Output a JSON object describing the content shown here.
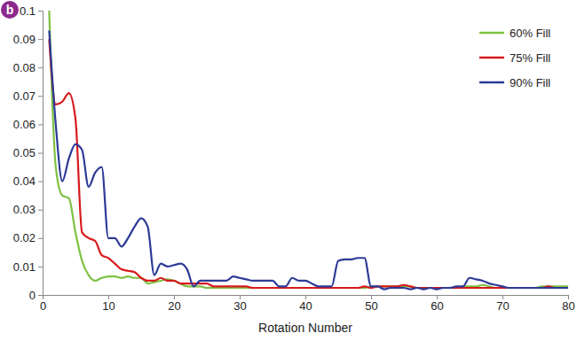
{
  "chart_data": {
    "type": "line",
    "title": "b",
    "xlabel": "Rotation Number",
    "x": [
      1,
      2,
      3,
      4,
      5,
      6,
      7,
      8,
      9,
      10,
      11,
      12,
      13,
      14,
      15,
      16,
      17,
      18,
      19,
      20,
      21,
      22,
      23,
      24,
      25,
      26,
      27,
      28,
      29,
      30,
      31,
      32,
      33,
      34,
      35,
      36,
      37,
      38,
      39,
      40,
      41,
      42,
      43,
      44,
      45,
      46,
      47,
      48,
      49,
      50,
      51,
      52,
      53,
      54,
      55,
      56,
      57,
      58,
      59,
      60,
      61,
      62,
      63,
      64,
      65,
      66,
      67,
      68,
      69,
      70,
      71,
      72,
      73,
      74,
      75,
      76,
      77,
      78,
      79,
      80
    ],
    "series": [
      {
        "name": "60% Fill",
        "color": "#7dc142",
        "values": [
          0.1,
          0.045,
          0.035,
          0.034,
          0.022,
          0.012,
          0.007,
          0.005,
          0.006,
          0.0065,
          0.0065,
          0.006,
          0.0065,
          0.006,
          0.006,
          0.004,
          0.0045,
          0.005,
          0.0055,
          0.005,
          0.004,
          0.003,
          0.003,
          0.003,
          0.0025,
          0.0025,
          0.0025,
          0.0025,
          0.0025,
          0.0025,
          0.0025,
          0.0025,
          0.0025,
          0.0025,
          0.0025,
          0.0025,
          0.0025,
          0.0025,
          0.0025,
          0.0025,
          0.0025,
          0.0025,
          0.0025,
          0.0025,
          0.0025,
          0.0025,
          0.0025,
          0.0025,
          0.0025,
          0.003,
          0.003,
          0.003,
          0.003,
          0.003,
          0.003,
          0.003,
          0.0025,
          0.0025,
          0.0025,
          0.0025,
          0.0025,
          0.0025,
          0.0025,
          0.003,
          0.003,
          0.003,
          0.0035,
          0.003,
          0.0025,
          0.0025,
          0.0025,
          0.0025,
          0.0025,
          0.0025,
          0.0025,
          0.003,
          0.003,
          0.003,
          0.003,
          0.003
        ]
      },
      {
        "name": "75% Fill",
        "color": "#d7191c",
        "values": [
          0.09,
          0.067,
          0.068,
          0.071,
          0.062,
          0.022,
          0.02,
          0.019,
          0.014,
          0.013,
          0.011,
          0.009,
          0.0085,
          0.008,
          0.006,
          0.005,
          0.005,
          0.006,
          0.005,
          0.005,
          0.004,
          0.004,
          0.004,
          0.004,
          0.004,
          0.003,
          0.003,
          0.003,
          0.003,
          0.003,
          0.003,
          0.0025,
          0.0025,
          0.0025,
          0.0025,
          0.0025,
          0.0025,
          0.0025,
          0.0025,
          0.0025,
          0.0025,
          0.0025,
          0.0025,
          0.0025,
          0.0025,
          0.0025,
          0.0025,
          0.0025,
          0.003,
          0.0025,
          0.003,
          0.003,
          0.003,
          0.003,
          0.0035,
          0.003,
          0.0025,
          0.0025,
          0.0025,
          0.0025,
          0.0025,
          0.0025,
          0.0025,
          0.0025,
          0.0025,
          0.0025,
          0.0025,
          0.0025,
          0.0025,
          0.0025,
          0.0025,
          0.0025,
          0.0025,
          0.0025,
          0.0025,
          0.0025,
          0.003,
          0.0025,
          0.0025,
          0.0025
        ]
      },
      {
        "name": "90% Fill",
        "color": "#2c3a97",
        "values": [
          0.093,
          0.06,
          0.04,
          0.048,
          0.053,
          0.051,
          0.038,
          0.043,
          0.045,
          0.02,
          0.02,
          0.017,
          0.02,
          0.024,
          0.027,
          0.024,
          0.007,
          0.011,
          0.01,
          0.0105,
          0.011,
          0.009,
          0.003,
          0.005,
          0.005,
          0.005,
          0.005,
          0.005,
          0.0065,
          0.006,
          0.0055,
          0.005,
          0.005,
          0.005,
          0.005,
          0.003,
          0.003,
          0.006,
          0.005,
          0.005,
          0.004,
          0.003,
          0.003,
          0.003,
          0.012,
          0.0125,
          0.0125,
          0.013,
          0.013,
          0.003,
          0.003,
          0.002,
          0.0025,
          0.0025,
          0.0025,
          0.002,
          0.0025,
          0.002,
          0.0025,
          0.002,
          0.0025,
          0.0025,
          0.003,
          0.003,
          0.006,
          0.0055,
          0.005,
          0.004,
          0.0035,
          0.003,
          0.0025,
          0.0025,
          0.0025,
          0.0025,
          0.0025,
          0.0025,
          0.0025,
          0.0025,
          0.0025,
          0.0025
        ]
      }
    ],
    "xlim": [
      0,
      80
    ],
    "xticks": [
      0,
      10,
      20,
      30,
      40,
      50,
      60,
      70,
      80
    ],
    "ylim": [
      0,
      0.1
    ],
    "yticks": [
      0,
      0.01,
      0.02,
      0.03,
      0.04,
      0.05,
      0.06,
      0.07,
      0.08,
      0.09,
      0.1
    ],
    "grid": false,
    "legend": "upper right"
  }
}
